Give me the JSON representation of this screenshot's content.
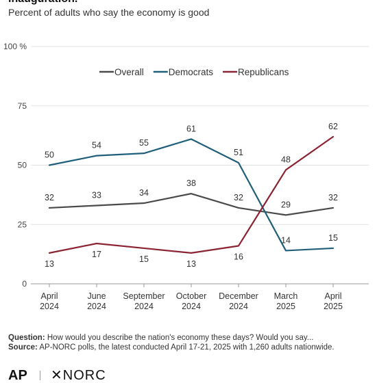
{
  "header": {
    "title": "inauguration.",
    "subtitle": "Percent of adults who say the economy is good"
  },
  "footer": {
    "question_label": "Question:",
    "question_text": " How would you describe the nation's economy these days? Would you say...",
    "source_label": "Source:",
    "source_text": "  AP-NORC polls, the latest conducted April 17-21, 2025 with 1,260 adults nationwide.",
    "logo_ap": "AP",
    "logo_norc": "✕NORC"
  },
  "chart_data": {
    "type": "line",
    "title": "",
    "xlabel": "",
    "ylabel": "",
    "categories": [
      [
        "April",
        "2024"
      ],
      [
        "June",
        "2024"
      ],
      [
        "September",
        "2024"
      ],
      [
        "October",
        "2024"
      ],
      [
        "December",
        "2024"
      ],
      [
        "March",
        "2025"
      ],
      [
        "April",
        "2025"
      ]
    ],
    "ylim": [
      0,
      100
    ],
    "yticks": [
      0,
      25,
      50,
      75,
      100
    ],
    "ytick_labels": [
      "0",
      "25",
      "50",
      "75",
      "100 %"
    ],
    "grid": "horizontal",
    "legend_position": "top-center",
    "series": [
      {
        "name": "Overall",
        "color": "#4a4a4a",
        "values": [
          32,
          33,
          34,
          38,
          32,
          29,
          32
        ]
      },
      {
        "name": "Democrats",
        "color": "#1f5f7a",
        "values": [
          50,
          54,
          55,
          61,
          51,
          14,
          15
        ]
      },
      {
        "name": "Republicans",
        "color": "#8b2332",
        "values": [
          13,
          17,
          15,
          13,
          16,
          48,
          62
        ]
      }
    ]
  }
}
